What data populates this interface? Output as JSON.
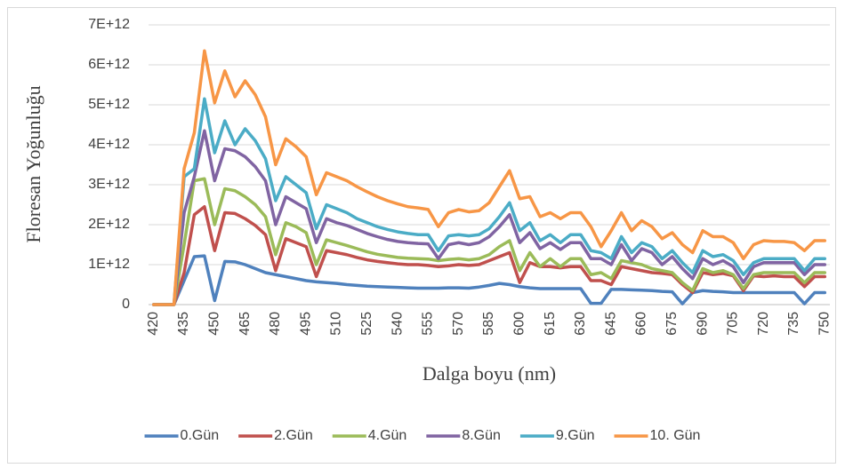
{
  "chart_data": {
    "type": "line",
    "x_label": "Dalga boyu (nm)",
    "y_label": "Floresan Yoğunluğu",
    "categories": [
      420,
      null,
      null,
      435,
      null,
      null,
      450,
      null,
      null,
      465,
      null,
      null,
      480,
      null,
      null,
      495,
      null,
      null,
      510,
      null,
      null,
      525,
      null,
      null,
      540,
      null,
      null,
      555,
      null,
      null,
      570,
      null,
      null,
      585,
      null,
      null,
      600,
      null,
      null,
      615,
      null,
      null,
      630,
      null,
      null,
      645,
      null,
      null,
      660,
      null,
      null,
      675,
      null,
      null,
      690,
      null,
      null,
      705,
      null,
      null,
      720,
      null,
      null,
      735,
      null,
      null,
      750
    ],
    "ylim": [
      0,
      7000000000000.0
    ],
    "yticks": [
      0,
      {
        "value": 1000000000000.0,
        "label": "1E+12"
      },
      {
        "value": 2000000000000.0,
        "label": "2E+12"
      },
      {
        "value": 3000000000000.0,
        "label": "3E+12"
      },
      {
        "value": 4000000000000.0,
        "label": "4E+12"
      },
      {
        "value": 5000000000000.0,
        "label": "5E+12"
      },
      {
        "value": 6000000000000.0,
        "label": "6E+12"
      },
      {
        "value": 7000000000000.0,
        "label": "7E+12"
      }
    ],
    "grid": true,
    "legend": "bottom",
    "series": [
      {
        "name": "0.Gün",
        "color": "#4F81BD",
        "values": [
          0,
          0,
          0,
          600000000000.0,
          1200000000000.0,
          1220000000000.0,
          100000000000.0,
          1080000000000.0,
          1070000000000.0,
          1000000000000.0,
          900000000000.0,
          800000000000.0,
          750000000000.0,
          700000000000.0,
          650000000000.0,
          600000000000.0,
          570000000000.0,
          550000000000.0,
          530000000000.0,
          500000000000.0,
          480000000000.0,
          460000000000.0,
          450000000000.0,
          440000000000.0,
          430000000000.0,
          420000000000.0,
          410000000000.0,
          410000000000.0,
          410000000000.0,
          420000000000.0,
          420000000000.0,
          410000000000.0,
          440000000000.0,
          480000000000.0,
          530000000000.0,
          500000000000.0,
          450000000000.0,
          420000000000.0,
          400000000000.0,
          400000000000.0,
          400000000000.0,
          400000000000.0,
          400000000000.0,
          30000000000.0,
          30000000000.0,
          380000000000.0,
          380000000000.0,
          370000000000.0,
          360000000000.0,
          350000000000.0,
          330000000000.0,
          320000000000.0,
          20000000000.0,
          300000000000.0,
          350000000000.0,
          330000000000.0,
          320000000000.0,
          300000000000.0,
          300000000000.0,
          300000000000.0,
          300000000000.0,
          300000000000.0,
          300000000000.0,
          300000000000.0,
          20000000000.0,
          300000000000.0,
          300000000000.0
        ]
      },
      {
        "name": "2.Gün",
        "color": "#C0504D",
        "values": [
          0,
          0,
          0,
          800000000000.0,
          2250000000000.0,
          2450000000000.0,
          1350000000000.0,
          2300000000000.0,
          2280000000000.0,
          2150000000000.0,
          1980000000000.0,
          1750000000000.0,
          850000000000.0,
          1650000000000.0,
          1550000000000.0,
          1450000000000.0,
          700000000000.0,
          1350000000000.0,
          1300000000000.0,
          1250000000000.0,
          1180000000000.0,
          1120000000000.0,
          1080000000000.0,
          1050000000000.0,
          1020000000000.0,
          1000000000000.0,
          1000000000000.0,
          980000000000.0,
          950000000000.0,
          970000000000.0,
          1000000000000.0,
          980000000000.0,
          1000000000000.0,
          1100000000000.0,
          1200000000000.0,
          1300000000000.0,
          550000000000.0,
          1050000000000.0,
          950000000000.0,
          950000000000.0,
          920000000000.0,
          950000000000.0,
          950000000000.0,
          600000000000.0,
          600000000000.0,
          500000000000.0,
          950000000000.0,
          900000000000.0,
          850000000000.0,
          800000000000.0,
          780000000000.0,
          750000000000.0,
          500000000000.0,
          300000000000.0,
          800000000000.0,
          750000000000.0,
          780000000000.0,
          720000000000.0,
          350000000000.0,
          720000000000.0,
          700000000000.0,
          720000000000.0,
          700000000000.0,
          700000000000.0,
          450000000000.0,
          700000000000.0,
          700000000000.0
        ]
      },
      {
        "name": "4.Gün",
        "color": "#9BBB59",
        "values": [
          0,
          0,
          0,
          1500000000000.0,
          3100000000000.0,
          3150000000000.0,
          2000000000000.0,
          2900000000000.0,
          2850000000000.0,
          2700000000000.0,
          2500000000000.0,
          2200000000000.0,
          1250000000000.0,
          2050000000000.0,
          1950000000000.0,
          1800000000000.0,
          1000000000000.0,
          1620000000000.0,
          1550000000000.0,
          1480000000000.0,
          1400000000000.0,
          1320000000000.0,
          1260000000000.0,
          1220000000000.0,
          1180000000000.0,
          1160000000000.0,
          1150000000000.0,
          1140000000000.0,
          1100000000000.0,
          1130000000000.0,
          1150000000000.0,
          1120000000000.0,
          1150000000000.0,
          1250000000000.0,
          1450000000000.0,
          1600000000000.0,
          850000000000.0,
          1300000000000.0,
          950000000000.0,
          1150000000000.0,
          950000000000.0,
          1150000000000.0,
          1150000000000.0,
          750000000000.0,
          800000000000.0,
          650000000000.0,
          1100000000000.0,
          1050000000000.0,
          1000000000000.0,
          900000000000.0,
          850000000000.0,
          800000000000.0,
          550000000000.0,
          350000000000.0,
          900000000000.0,
          800000000000.0,
          850000000000.0,
          750000000000.0,
          400000000000.0,
          750000000000.0,
          800000000000.0,
          800000000000.0,
          800000000000.0,
          800000000000.0,
          550000000000.0,
          800000000000.0,
          800000000000.0
        ]
      },
      {
        "name": "8.Gün",
        "color": "#8064A2",
        "values": [
          0,
          0,
          0,
          2300000000000.0,
          3200000000000.0,
          4350000000000.0,
          3100000000000.0,
          3900000000000.0,
          3850000000000.0,
          3700000000000.0,
          3450000000000.0,
          3100000000000.0,
          2000000000000.0,
          2700000000000.0,
          2550000000000.0,
          2400000000000.0,
          1550000000000.0,
          2150000000000.0,
          2050000000000.0,
          1980000000000.0,
          1880000000000.0,
          1780000000000.0,
          1700000000000.0,
          1630000000000.0,
          1580000000000.0,
          1550000000000.0,
          1530000000000.0,
          1520000000000.0,
          1150000000000.0,
          1500000000000.0,
          1550000000000.0,
          1500000000000.0,
          1550000000000.0,
          1700000000000.0,
          1950000000000.0,
          2250000000000.0,
          1550000000000.0,
          1800000000000.0,
          1400000000000.0,
          1550000000000.0,
          1380000000000.0,
          1550000000000.0,
          1550000000000.0,
          1150000000000.0,
          1150000000000.0,
          1000000000000.0,
          1500000000000.0,
          1100000000000.0,
          1400000000000.0,
          1300000000000.0,
          1000000000000.0,
          1200000000000.0,
          900000000000.0,
          650000000000.0,
          1150000000000.0,
          1000000000000.0,
          1100000000000.0,
          950000000000.0,
          550000000000.0,
          950000000000.0,
          1050000000000.0,
          1050000000000.0,
          1050000000000.0,
          1050000000000.0,
          750000000000.0,
          1000000000000.0,
          1000000000000.0
        ]
      },
      {
        "name": "9.Gün",
        "color": "#4BACC6",
        "values": [
          0,
          0,
          0,
          3200000000000.0,
          3400000000000.0,
          5150000000000.0,
          3800000000000.0,
          4600000000000.0,
          4000000000000.0,
          4400000000000.0,
          4100000000000.0,
          3650000000000.0,
          2600000000000.0,
          3200000000000.0,
          3000000000000.0,
          2800000000000.0,
          1900000000000.0,
          2500000000000.0,
          2400000000000.0,
          2300000000000.0,
          2150000000000.0,
          2050000000000.0,
          1950000000000.0,
          1880000000000.0,
          1820000000000.0,
          1780000000000.0,
          1750000000000.0,
          1750000000000.0,
          1350000000000.0,
          1720000000000.0,
          1750000000000.0,
          1720000000000.0,
          1750000000000.0,
          1900000000000.0,
          2200000000000.0,
          2550000000000.0,
          1850000000000.0,
          2050000000000.0,
          1600000000000.0,
          1750000000000.0,
          1550000000000.0,
          1750000000000.0,
          1750000000000.0,
          1350000000000.0,
          1300000000000.0,
          1150000000000.0,
          1700000000000.0,
          1300000000000.0,
          1550000000000.0,
          1450000000000.0,
          1150000000000.0,
          1350000000000.0,
          1050000000000.0,
          800000000000.0,
          1350000000000.0,
          1200000000000.0,
          1250000000000.0,
          1100000000000.0,
          750000000000.0,
          1050000000000.0,
          1150000000000.0,
          1150000000000.0,
          1150000000000.0,
          1150000000000.0,
          850000000000.0,
          1150000000000.0,
          1150000000000.0
        ]
      },
      {
        "name": "10. Gün",
        "color": "#F79646",
        "values": [
          0,
          0,
          0,
          3400000000000.0,
          4300000000000.0,
          6350000000000.0,
          5050000000000.0,
          5850000000000.0,
          5200000000000.0,
          5600000000000.0,
          5250000000000.0,
          4700000000000.0,
          3500000000000.0,
          4150000000000.0,
          3950000000000.0,
          3700000000000.0,
          2750000000000.0,
          3300000000000.0,
          3200000000000.0,
          3100000000000.0,
          2950000000000.0,
          2820000000000.0,
          2700000000000.0,
          2600000000000.0,
          2520000000000.0,
          2450000000000.0,
          2420000000000.0,
          2380000000000.0,
          1950000000000.0,
          2300000000000.0,
          2380000000000.0,
          2320000000000.0,
          2350000000000.0,
          2550000000000.0,
          2950000000000.0,
          3350000000000.0,
          2650000000000.0,
          2700000000000.0,
          2200000000000.0,
          2300000000000.0,
          2150000000000.0,
          2300000000000.0,
          2300000000000.0,
          1950000000000.0,
          1450000000000.0,
          1850000000000.0,
          2300000000000.0,
          1850000000000.0,
          2100000000000.0,
          1950000000000.0,
          1650000000000.0,
          1800000000000.0,
          1500000000000.0,
          1300000000000.0,
          1850000000000.0,
          1700000000000.0,
          1700000000000.0,
          1550000000000.0,
          1150000000000.0,
          1500000000000.0,
          1600000000000.0,
          1580000000000.0,
          1580000000000.0,
          1550000000000.0,
          1350000000000.0,
          1600000000000.0,
          1600000000000.0
        ]
      }
    ]
  }
}
